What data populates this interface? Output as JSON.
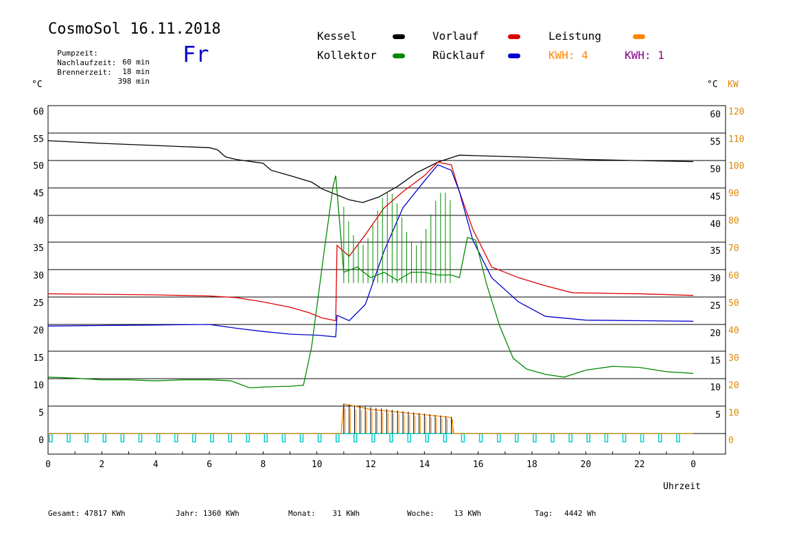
{
  "header": {
    "title": "CosmoSol 16.11.2018",
    "weekday": "Fr",
    "info": [
      {
        "label": "Pumpzeit:",
        "value": "60 min"
      },
      {
        "label": "Nachlaufzeit:",
        "value": "18 min"
      },
      {
        "label": "Brennerzeit:",
        "value": "398 min"
      }
    ]
  },
  "legend": [
    {
      "label": "Kessel",
      "color": "#000000"
    },
    {
      "label": "Vorlauf",
      "color": "#dd0000"
    },
    {
      "label": "Leistung",
      "color": "#ff8800"
    },
    {
      "label": "Kollektor",
      "color": "#008800"
    },
    {
      "label": "Rücklauf",
      "color": "#0000cc"
    }
  ],
  "kwh": [
    {
      "label": "KWH: 4",
      "color": "#ff8800"
    },
    {
      "label": "KWH: 1",
      "color": "#880088"
    }
  ],
  "axis": {
    "left_unit": "°C",
    "right_unit": "°C",
    "right_unit2": "KW",
    "xlabel": "Uhrzeit"
  },
  "footer": [
    {
      "label": "Gesamt:",
      "value": "47817 KWh"
    },
    {
      "label": "Jahr:",
      "value": "1360 KWh"
    },
    {
      "label": "Monat:",
      "value": "31 KWh"
    },
    {
      "label": "Woche:",
      "value": "13 KWh"
    },
    {
      "label": "Tag:",
      "value": "4442 Wh"
    }
  ],
  "chart_data": {
    "type": "line",
    "xlim": [
      0,
      24
    ],
    "ylim": [
      0,
      60
    ],
    "y2lim": [
      0,
      120
    ],
    "x_ticks": [
      "0",
      "2",
      "4",
      "6",
      "8",
      "10",
      "12",
      "14",
      "16",
      "18",
      "20",
      "22",
      "0"
    ],
    "y_ticks": [
      0,
      5,
      10,
      15,
      20,
      25,
      30,
      35,
      40,
      45,
      50,
      55,
      60
    ],
    "y2_ticks": [
      0,
      10,
      20,
      30,
      40,
      50,
      60,
      70,
      80,
      90,
      100,
      110,
      120
    ],
    "grid": true,
    "series": [
      {
        "name": "Kessel",
        "color": "#000000",
        "x": [
          0,
          2,
          4,
          6,
          6.3,
          6.6,
          7,
          8,
          8.3,
          9,
          9.8,
          10.2,
          10.7,
          11.2,
          11.7,
          12.3,
          13,
          13.7,
          14.5,
          15.1,
          15.3,
          16,
          18,
          20,
          22,
          24
        ],
        "y": [
          54.5,
          54,
          53.6,
          53.2,
          52.8,
          51.5,
          51,
          50.3,
          49,
          48,
          46.8,
          45.5,
          44.5,
          43.5,
          43,
          44,
          46,
          48.5,
          50.5,
          51.5,
          51.8,
          51.7,
          51.4,
          51,
          50.8,
          50.6
        ]
      },
      {
        "name": "Vorlauf",
        "color": "#dd0000",
        "x": [
          0,
          2,
          4,
          6,
          7,
          8,
          9,
          9.7,
          10.2,
          10.7,
          10.75,
          11.2,
          11.8,
          12.5,
          13.2,
          14,
          14.5,
          15,
          15.3,
          15.8,
          16.5,
          17.5,
          18.5,
          19.5,
          22,
          24
        ],
        "y": [
          26,
          25.9,
          25.8,
          25.6,
          25.3,
          24.5,
          23.5,
          22.5,
          21.5,
          21,
          35,
          33,
          37,
          42,
          45,
          48,
          50.5,
          50,
          45,
          38,
          31,
          29,
          27.5,
          26.2,
          26,
          25.7
        ]
      },
      {
        "name": "Rücklauf",
        "color": "#0000cc",
        "x": [
          0,
          2,
          4,
          6,
          7,
          8,
          9,
          10,
          10.7,
          10.75,
          11.2,
          11.8,
          12.5,
          13.2,
          14,
          14.5,
          15,
          15.3,
          15.8,
          16.5,
          17.5,
          18.5,
          20,
          22,
          24
        ],
        "y": [
          20,
          20.1,
          20.2,
          20.3,
          19.6,
          19,
          18.5,
          18.3,
          18,
          22,
          21,
          24,
          34,
          42,
          47,
          50,
          49,
          45,
          36,
          29,
          24.5,
          21.8,
          21.1,
          21,
          20.9
        ]
      },
      {
        "name": "Kollektor",
        "color": "#008800",
        "x": [
          0,
          1,
          2,
          3,
          4,
          5,
          6,
          6.8,
          7.5,
          8.2,
          9,
          9.5,
          9.8,
          10.3,
          10.6,
          10.7,
          11,
          11.5,
          12,
          12.5,
          13,
          13.5,
          14,
          14.5,
          15,
          15.3,
          15.6,
          15.9,
          16.3,
          16.8,
          17.3,
          17.8,
          18.5,
          19.2,
          20,
          21,
          22,
          23,
          24
        ],
        "y": [
          10.5,
          10.3,
          10,
          10,
          9.8,
          10,
          10,
          9.8,
          8.5,
          8.7,
          8.8,
          9,
          16,
          35,
          46,
          48,
          30,
          31,
          29,
          30,
          28.5,
          30,
          30,
          29.5,
          29.5,
          29,
          36.5,
          36,
          28,
          20,
          14,
          12,
          11,
          10.5,
          11.8,
          12.5,
          12.3,
          11.5,
          11.2
        ]
      },
      {
        "name": "Leistung",
        "color": "#ff8800",
        "x": [
          0,
          10.9,
          11,
          11.5,
          12,
          12.5,
          13,
          13.5,
          14,
          14.5,
          15,
          15.1,
          24
        ],
        "y2": [
          0,
          0,
          11,
          10,
          9,
          8.5,
          8,
          7.5,
          7,
          6.5,
          6,
          0,
          0
        ]
      }
    ]
  }
}
